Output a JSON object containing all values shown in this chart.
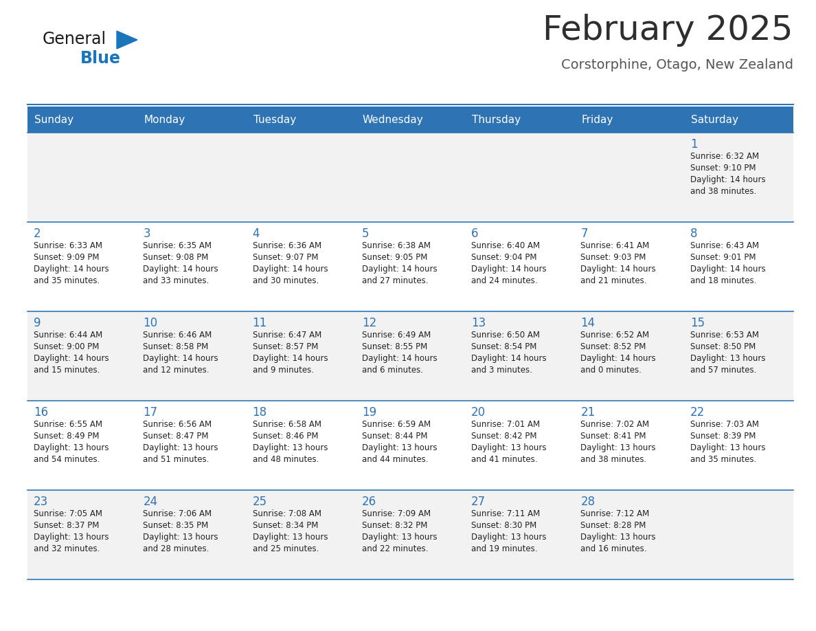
{
  "title": "February 2025",
  "subtitle": "Corstorphine, Otago, New Zealand",
  "days_of_week": [
    "Sunday",
    "Monday",
    "Tuesday",
    "Wednesday",
    "Thursday",
    "Friday",
    "Saturday"
  ],
  "header_bg": "#2E74B5",
  "header_text": "#FFFFFF",
  "cell_bg_odd": "#F2F2F2",
  "cell_bg_even": "#FFFFFF",
  "border_color": "#2E74B5",
  "title_color": "#2E2E2E",
  "subtitle_color": "#555555",
  "day_num_color": "#2E74B5",
  "text_color": "#222222",
  "logo_general_color": "#1A1A1A",
  "logo_blue_color": "#1A75BB",
  "weeks": [
    [
      {
        "day": null,
        "sunrise": null,
        "sunset": null,
        "daylight_line1": null,
        "daylight_line2": null
      },
      {
        "day": null,
        "sunrise": null,
        "sunset": null,
        "daylight_line1": null,
        "daylight_line2": null
      },
      {
        "day": null,
        "sunrise": null,
        "sunset": null,
        "daylight_line1": null,
        "daylight_line2": null
      },
      {
        "day": null,
        "sunrise": null,
        "sunset": null,
        "daylight_line1": null,
        "daylight_line2": null
      },
      {
        "day": null,
        "sunrise": null,
        "sunset": null,
        "daylight_line1": null,
        "daylight_line2": null
      },
      {
        "day": null,
        "sunrise": null,
        "sunset": null,
        "daylight_line1": null,
        "daylight_line2": null
      },
      {
        "day": 1,
        "sunrise": "6:32 AM",
        "sunset": "9:10 PM",
        "daylight_line1": "Daylight: 14 hours",
        "daylight_line2": "and 38 minutes."
      }
    ],
    [
      {
        "day": 2,
        "sunrise": "6:33 AM",
        "sunset": "9:09 PM",
        "daylight_line1": "Daylight: 14 hours",
        "daylight_line2": "and 35 minutes."
      },
      {
        "day": 3,
        "sunrise": "6:35 AM",
        "sunset": "9:08 PM",
        "daylight_line1": "Daylight: 14 hours",
        "daylight_line2": "and 33 minutes."
      },
      {
        "day": 4,
        "sunrise": "6:36 AM",
        "sunset": "9:07 PM",
        "daylight_line1": "Daylight: 14 hours",
        "daylight_line2": "and 30 minutes."
      },
      {
        "day": 5,
        "sunrise": "6:38 AM",
        "sunset": "9:05 PM",
        "daylight_line1": "Daylight: 14 hours",
        "daylight_line2": "and 27 minutes."
      },
      {
        "day": 6,
        "sunrise": "6:40 AM",
        "sunset": "9:04 PM",
        "daylight_line1": "Daylight: 14 hours",
        "daylight_line2": "and 24 minutes."
      },
      {
        "day": 7,
        "sunrise": "6:41 AM",
        "sunset": "9:03 PM",
        "daylight_line1": "Daylight: 14 hours",
        "daylight_line2": "and 21 minutes."
      },
      {
        "day": 8,
        "sunrise": "6:43 AM",
        "sunset": "9:01 PM",
        "daylight_line1": "Daylight: 14 hours",
        "daylight_line2": "and 18 minutes."
      }
    ],
    [
      {
        "day": 9,
        "sunrise": "6:44 AM",
        "sunset": "9:00 PM",
        "daylight_line1": "Daylight: 14 hours",
        "daylight_line2": "and 15 minutes."
      },
      {
        "day": 10,
        "sunrise": "6:46 AM",
        "sunset": "8:58 PM",
        "daylight_line1": "Daylight: 14 hours",
        "daylight_line2": "and 12 minutes."
      },
      {
        "day": 11,
        "sunrise": "6:47 AM",
        "sunset": "8:57 PM",
        "daylight_line1": "Daylight: 14 hours",
        "daylight_line2": "and 9 minutes."
      },
      {
        "day": 12,
        "sunrise": "6:49 AM",
        "sunset": "8:55 PM",
        "daylight_line1": "Daylight: 14 hours",
        "daylight_line2": "and 6 minutes."
      },
      {
        "day": 13,
        "sunrise": "6:50 AM",
        "sunset": "8:54 PM",
        "daylight_line1": "Daylight: 14 hours",
        "daylight_line2": "and 3 minutes."
      },
      {
        "day": 14,
        "sunrise": "6:52 AM",
        "sunset": "8:52 PM",
        "daylight_line1": "Daylight: 14 hours",
        "daylight_line2": "and 0 minutes."
      },
      {
        "day": 15,
        "sunrise": "6:53 AM",
        "sunset": "8:50 PM",
        "daylight_line1": "Daylight: 13 hours",
        "daylight_line2": "and 57 minutes."
      }
    ],
    [
      {
        "day": 16,
        "sunrise": "6:55 AM",
        "sunset": "8:49 PM",
        "daylight_line1": "Daylight: 13 hours",
        "daylight_line2": "and 54 minutes."
      },
      {
        "day": 17,
        "sunrise": "6:56 AM",
        "sunset": "8:47 PM",
        "daylight_line1": "Daylight: 13 hours",
        "daylight_line2": "and 51 minutes."
      },
      {
        "day": 18,
        "sunrise": "6:58 AM",
        "sunset": "8:46 PM",
        "daylight_line1": "Daylight: 13 hours",
        "daylight_line2": "and 48 minutes."
      },
      {
        "day": 19,
        "sunrise": "6:59 AM",
        "sunset": "8:44 PM",
        "daylight_line1": "Daylight: 13 hours",
        "daylight_line2": "and 44 minutes."
      },
      {
        "day": 20,
        "sunrise": "7:01 AM",
        "sunset": "8:42 PM",
        "daylight_line1": "Daylight: 13 hours",
        "daylight_line2": "and 41 minutes."
      },
      {
        "day": 21,
        "sunrise": "7:02 AM",
        "sunset": "8:41 PM",
        "daylight_line1": "Daylight: 13 hours",
        "daylight_line2": "and 38 minutes."
      },
      {
        "day": 22,
        "sunrise": "7:03 AM",
        "sunset": "8:39 PM",
        "daylight_line1": "Daylight: 13 hours",
        "daylight_line2": "and 35 minutes."
      }
    ],
    [
      {
        "day": 23,
        "sunrise": "7:05 AM",
        "sunset": "8:37 PM",
        "daylight_line1": "Daylight: 13 hours",
        "daylight_line2": "and 32 minutes."
      },
      {
        "day": 24,
        "sunrise": "7:06 AM",
        "sunset": "8:35 PM",
        "daylight_line1": "Daylight: 13 hours",
        "daylight_line2": "and 28 minutes."
      },
      {
        "day": 25,
        "sunrise": "7:08 AM",
        "sunset": "8:34 PM",
        "daylight_line1": "Daylight: 13 hours",
        "daylight_line2": "and 25 minutes."
      },
      {
        "day": 26,
        "sunrise": "7:09 AM",
        "sunset": "8:32 PM",
        "daylight_line1": "Daylight: 13 hours",
        "daylight_line2": "and 22 minutes."
      },
      {
        "day": 27,
        "sunrise": "7:11 AM",
        "sunset": "8:30 PM",
        "daylight_line1": "Daylight: 13 hours",
        "daylight_line2": "and 19 minutes."
      },
      {
        "day": 28,
        "sunrise": "7:12 AM",
        "sunset": "8:28 PM",
        "daylight_line1": "Daylight: 13 hours",
        "daylight_line2": "and 16 minutes."
      },
      {
        "day": null,
        "sunrise": null,
        "sunset": null,
        "daylight_line1": null,
        "daylight_line2": null
      }
    ]
  ]
}
